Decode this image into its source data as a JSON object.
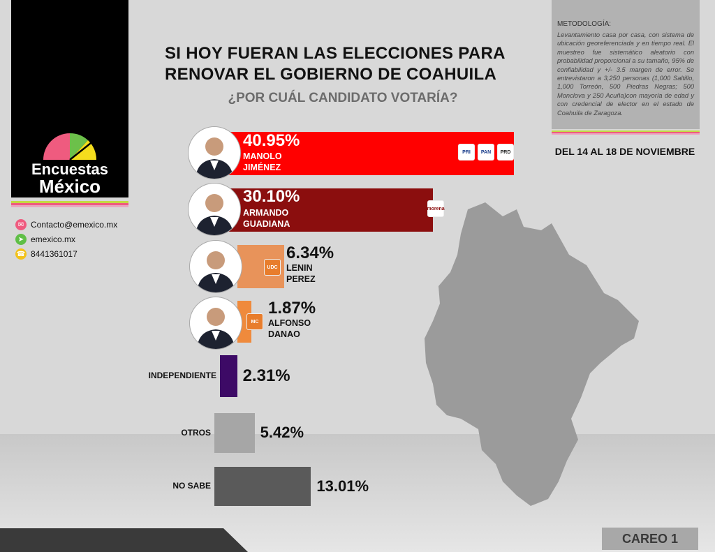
{
  "header": {
    "title": "SI HOY FUERAN LAS ELECCIONES PARA RENOVAR EL GOBIERNO DE COAHUILA",
    "subtitle": "¿POR CUÁL CANDIDATO VOTARÍA?"
  },
  "logo": {
    "line1": "Encuestas",
    "line2": "México"
  },
  "contact": {
    "email": "Contacto@emexico.mx",
    "web": "emexico.mx",
    "phone": "8441361017",
    "icons": [
      "mail-icon",
      "pointer-icon",
      "phone-icon"
    ]
  },
  "methodology": {
    "heading": "METODOLOGÍA:",
    "body": "Levantamiento casa por casa, con sistema de ubicación georeferenciada y en tiempo real. El muestreo fue sistemático aleatorio con probabilidad proporcional a su tamaño, 95% de confiabilidad y +/- 3.5 margen de error. Se entrevistaron a 3,250 personas (1,000 Saltillo, 1,000 Torreón, 500 Piedras Negras; 500 Monclova y 250 Acuña)con mayoría de edad y con credencial de elector en el estado de Coahuila de Zaragoza."
  },
  "dates": "DEL 14 AL 18 DE NOVIEMBRE",
  "careo": "CAREO 1",
  "chart_data": {
    "type": "bar",
    "orientation": "horizontal",
    "title": "SI HOY FUERAN LAS ELECCIONES PARA RENOVAR EL GOBIERNO DE COAHUILA",
    "subtitle": "¿POR CUÁL CANDIDATO VOTARÍA?",
    "unit": "%",
    "categories": [
      "MANOLO JIMÉNEZ",
      "ARMANDO GUADIANA",
      "LENIN PEREZ",
      "ALFONSO DANAO",
      "INDEPENDIENTE",
      "OTROS",
      "NO SABE"
    ],
    "values": [
      40.95,
      30.1,
      6.34,
      1.87,
      2.31,
      5.42,
      13.01
    ],
    "labels": [
      "40.95%",
      "30.10%",
      "6.34%",
      "1.87%",
      "2.31%",
      "5.42%",
      "13.01%"
    ],
    "colors": [
      "#ff0000",
      "#8b0e0e",
      "#e8935a",
      "#ef8a3c",
      "#3d0a66",
      "#a6a6a6",
      "#5a5a5a"
    ],
    "candidates": [
      {
        "line1": "MANOLO",
        "line2": "JIMÉNEZ",
        "parties": [
          "PRI",
          "PAN",
          "PRD"
        ]
      },
      {
        "line1": "ARMANDO",
        "line2": "GUADIANA",
        "parties": [
          "morena"
        ]
      },
      {
        "line1": "LENIN",
        "line2": "PEREZ",
        "parties": [
          "UDC"
        ]
      },
      {
        "line1": "ALFONSO",
        "line2": "DANAO",
        "parties": [
          "MC"
        ]
      }
    ]
  }
}
